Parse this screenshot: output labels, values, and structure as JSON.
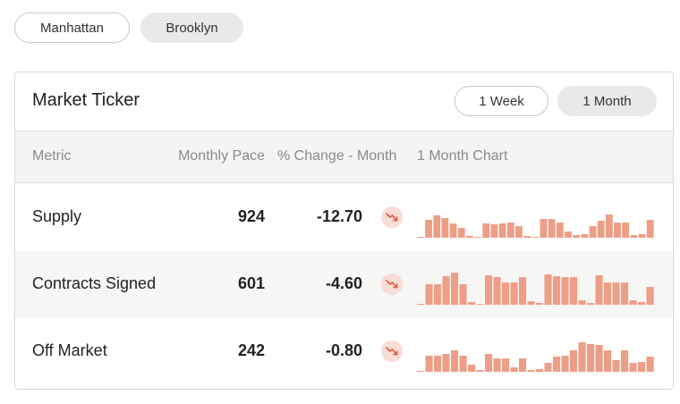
{
  "location_tabs": [
    {
      "label": "Manhattan",
      "selected": false
    },
    {
      "label": "Brooklyn",
      "selected": true
    }
  ],
  "ticker": {
    "title": "Market Ticker",
    "range_tabs": [
      {
        "label": "1 Week",
        "selected": false
      },
      {
        "label": "1 Month",
        "selected": true
      }
    ],
    "columns": {
      "metric": "Metric",
      "pace": "Monthly Pace",
      "change": "% Change - Month",
      "chart": "1 Month Chart"
    },
    "bar_color": "#ee9d86",
    "trend_icon_color": "#e0583c",
    "rows": [
      {
        "metric": "Supply",
        "pace": "924",
        "change": "-12.70",
        "trend_icon": "trend-down-icon",
        "spark": [
          1,
          20,
          25,
          22,
          16,
          11,
          2,
          1,
          16,
          15,
          16,
          17,
          13,
          2,
          1,
          21,
          21,
          17,
          7,
          3,
          4,
          13,
          19,
          26,
          17,
          17,
          3,
          4,
          20
        ]
      },
      {
        "metric": "Contracts Signed",
        "pace": "601",
        "change": "-4.60",
        "trend_icon": "trend-down-icon",
        "spark": [
          1,
          23,
          23,
          32,
          36,
          23,
          3,
          1,
          33,
          31,
          25,
          25,
          31,
          4,
          2,
          34,
          32,
          31,
          31,
          5,
          2,
          33,
          25,
          25,
          25,
          5,
          3,
          20
        ]
      },
      {
        "metric": "Off Market",
        "pace": "242",
        "change": "-0.80",
        "trend_icon": "trend-down-icon",
        "spark": [
          1,
          18,
          18,
          20,
          24,
          18,
          8,
          2,
          20,
          15,
          15,
          5,
          15,
          2,
          3,
          10,
          17,
          18,
          24,
          33,
          31,
          30,
          24,
          13,
          24,
          10,
          11,
          17
        ]
      }
    ]
  }
}
